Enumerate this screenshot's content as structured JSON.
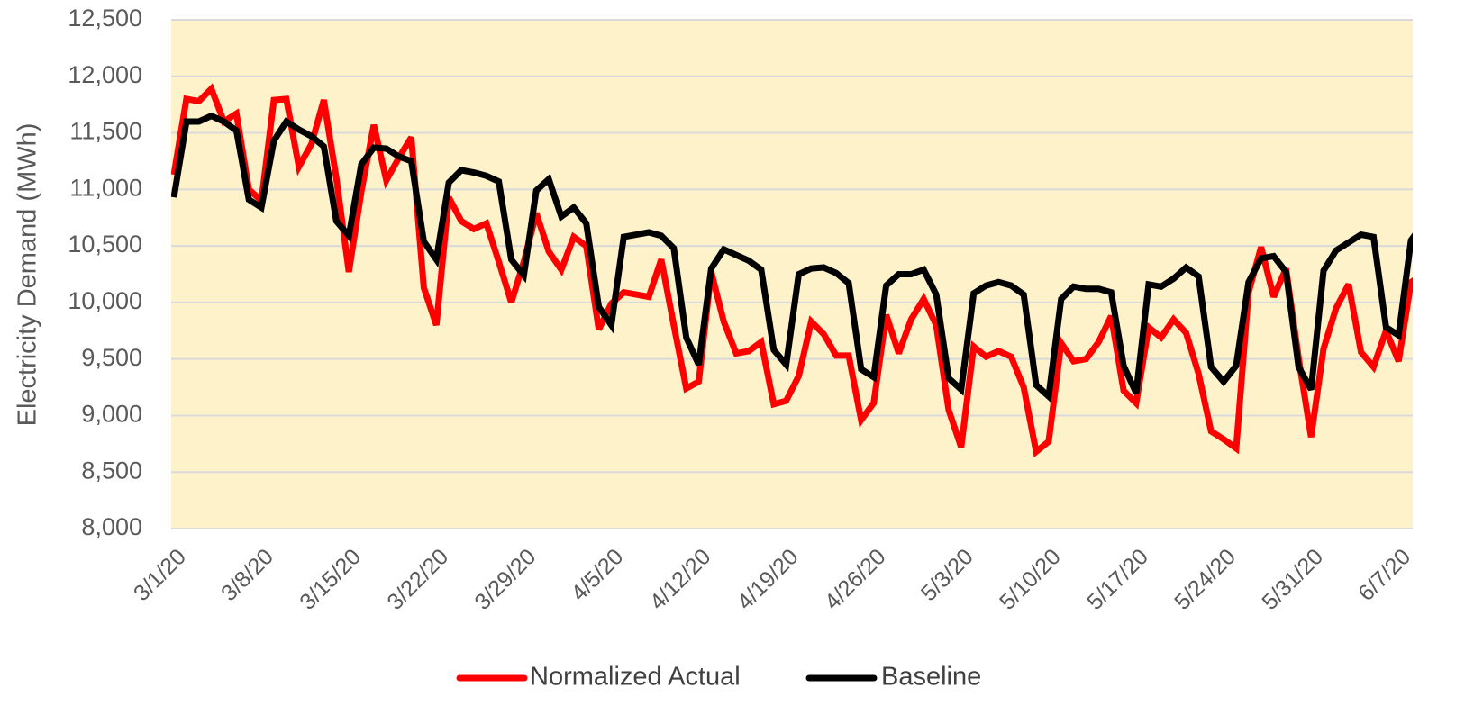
{
  "chart_data": {
    "type": "line",
    "y_axis_label": "Electricity Demand (MWh)",
    "categories": [
      "3/1/20",
      null,
      null,
      null,
      null,
      null,
      null,
      "3/8/20",
      null,
      null,
      null,
      null,
      null,
      null,
      "3/15/20",
      null,
      null,
      null,
      null,
      null,
      null,
      "3/22/20",
      null,
      null,
      null,
      null,
      null,
      null,
      "3/29/20",
      null,
      null,
      null,
      null,
      null,
      null,
      "4/5/20",
      null,
      null,
      null,
      null,
      null,
      null,
      "4/12/20",
      null,
      null,
      null,
      null,
      null,
      null,
      "4/19/20",
      null,
      null,
      null,
      null,
      null,
      null,
      "4/26/20",
      null,
      null,
      null,
      null,
      null,
      null,
      "5/3/20",
      null,
      null,
      null,
      null,
      null,
      null,
      "5/10/20",
      null,
      null,
      null,
      null,
      null,
      null,
      "5/17/20",
      null,
      null,
      null,
      null,
      null,
      null,
      "5/24/20",
      null,
      null,
      null,
      null,
      null,
      null,
      "5/31/20",
      null,
      null,
      null,
      null,
      null,
      null,
      "6/7/20",
      null,
      null
    ],
    "series": [
      {
        "name": "Normalized Actual",
        "color": "#ff0000",
        "values": [
          11130,
          11800,
          11780,
          11890,
          11600,
          11670,
          11000,
          10900,
          11790,
          11800,
          11200,
          11400,
          11790,
          11100,
          10270,
          10980,
          11570,
          11080,
          11280,
          11460,
          10130,
          9800,
          10930,
          10720,
          10650,
          10700,
          10360,
          10000,
          10360,
          10790,
          10450,
          10290,
          10580,
          10500,
          9760,
          9990,
          10090,
          10070,
          10050,
          10380,
          9800,
          9240,
          9300,
          10270,
          9830,
          9550,
          9570,
          9650,
          9100,
          9130,
          9350,
          9830,
          9720,
          9530,
          9530,
          8960,
          9110,
          9890,
          9550,
          9850,
          10030,
          9800,
          9050,
          8720,
          9610,
          9520,
          9570,
          9520,
          9250,
          8680,
          8770,
          9640,
          9480,
          9500,
          9650,
          9880,
          9220,
          9110,
          9780,
          9690,
          9850,
          9730,
          9370,
          8860,
          8790,
          8710,
          10090,
          10490,
          10050,
          10300,
          9510,
          8810,
          9590,
          9950,
          10160,
          9560,
          9430,
          9750,
          9480,
          10180,
          10250
        ]
      },
      {
        "name": "Baseline",
        "color": "#000000",
        "values": [
          10930,
          11600,
          11600,
          11650,
          11600,
          11520,
          10910,
          10840,
          11430,
          11600,
          11530,
          11470,
          11380,
          10720,
          10590,
          11220,
          11370,
          11360,
          11290,
          11250,
          10540,
          10380,
          11060,
          11170,
          11150,
          11120,
          11070,
          10380,
          10240,
          10990,
          11090,
          10760,
          10840,
          10700,
          9960,
          9800,
          10580,
          10600,
          10620,
          10590,
          10480,
          9690,
          9450,
          10300,
          10470,
          10420,
          10370,
          10290,
          9580,
          9450,
          10250,
          10300,
          10310,
          10260,
          10170,
          9410,
          9340,
          10150,
          10250,
          10250,
          10290,
          10070,
          9330,
          9230,
          10080,
          10150,
          10180,
          10150,
          10070,
          9270,
          9170,
          10030,
          10140,
          10120,
          10120,
          10090,
          9440,
          9200,
          10160,
          10140,
          10210,
          10310,
          10230,
          9430,
          9300,
          9440,
          10180,
          10390,
          10410,
          10270,
          9430,
          9230,
          10280,
          10460,
          10530,
          10600,
          10580,
          9780,
          9710,
          10550,
          10700
        ]
      }
    ],
    "ylim": [
      8000,
      12500
    ],
    "yticks": [
      {
        "value": 8000,
        "label": "8,000"
      },
      {
        "value": 8500,
        "label": "8,500"
      },
      {
        "value": 9000,
        "label": "9,000"
      },
      {
        "value": 9500,
        "label": "9,500"
      },
      {
        "value": 10000,
        "label": "10,000"
      },
      {
        "value": 10500,
        "label": "10,500"
      },
      {
        "value": 11000,
        "label": "11,000"
      },
      {
        "value": 11500,
        "label": "11,500"
      },
      {
        "value": 12000,
        "label": "12,000"
      },
      {
        "value": 12500,
        "label": "12,500"
      }
    ],
    "grid": true,
    "legend": "bottom",
    "plot_background": "#fef2cb"
  }
}
